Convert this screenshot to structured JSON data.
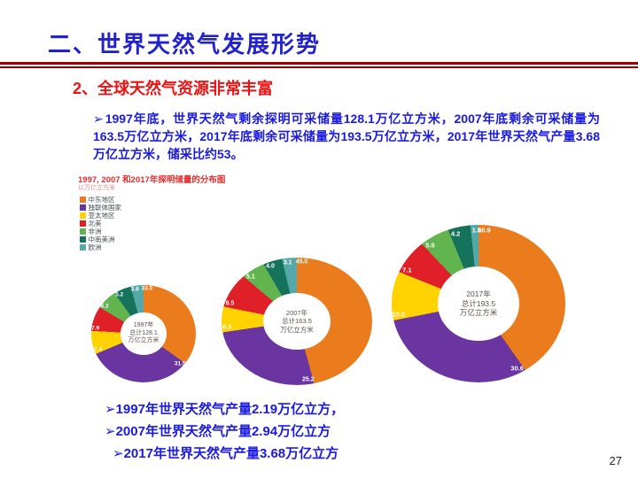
{
  "slide": {
    "title": "二、世界天然气发展形势",
    "subtitle": "2、全球天然气资源非常丰富",
    "bullet_marker": "➢",
    "paragraph": "1997年底，世界天然气剩余探明可采储量128.1万亿立方米，2007年底剩余可采储量为163.5万亿立方米，2017年底剩余可采储量为193.5万亿立方米，2017年世界天然气产量3.68万亿立方米，储采比约53。",
    "bottom_bullets": [
      "1997年世界天然气产量2.19万亿立方，",
      "2007年世界天然气产量2.94万亿立方",
      "2017年世界天然气产量3.68万亿立方"
    ],
    "page_number": "27",
    "colors": {
      "title_blue": "#2222CC",
      "subtitle_red": "#EE1111",
      "body_blue": "#1A1AE0",
      "rule_maroon": "#A00000",
      "chart_title_red": "#E03030",
      "chart_unit_pink": "#E88888",
      "center_text": "#5d5249",
      "slice_label": "#FFFFFF",
      "legend_text": "#3d4d4d",
      "page_number": "#222222"
    }
  },
  "chart_data": {
    "type": "pie",
    "subtype": "donut",
    "title": "1997, 2007 和2017年探明储量的分布图",
    "subtitle": "以万亿立方米",
    "legend_position": "left",
    "categories": [
      "中东地区",
      "独联体国家",
      "亚太地区",
      "北美",
      "非洲",
      "中南美洲",
      "欧洲"
    ],
    "colors": [
      "#EB7C1E",
      "#6A35A0",
      "#FFD200",
      "#E02028",
      "#62B54E",
      "#15735B",
      "#55A8A8"
    ],
    "pies": [
      {
        "year": "1997年",
        "total": 128.1,
        "center_lines": [
          "1997年",
          "总计128.1",
          "万亿立方米"
        ],
        "values": [
          33.9,
          31.5,
          7.4,
          7.9,
          6.2,
          5.2,
          3.8
        ]
      },
      {
        "year": "2007年",
        "total": 163.5,
        "center_lines": [
          "2007年",
          "总计163.5",
          "万亿立方米"
        ],
        "values": [
          45.0,
          25.2,
          6.3,
          8.5,
          5.1,
          4.0,
          3.1
        ]
      },
      {
        "year": "2017年",
        "total": 193.5,
        "center_lines": [
          "2017年",
          "总计193.5",
          "万亿立方米"
        ],
        "values": [
          40.9,
          30.6,
          10.0,
          7.1,
          5.6,
          4.2,
          1.5
        ]
      }
    ]
  }
}
